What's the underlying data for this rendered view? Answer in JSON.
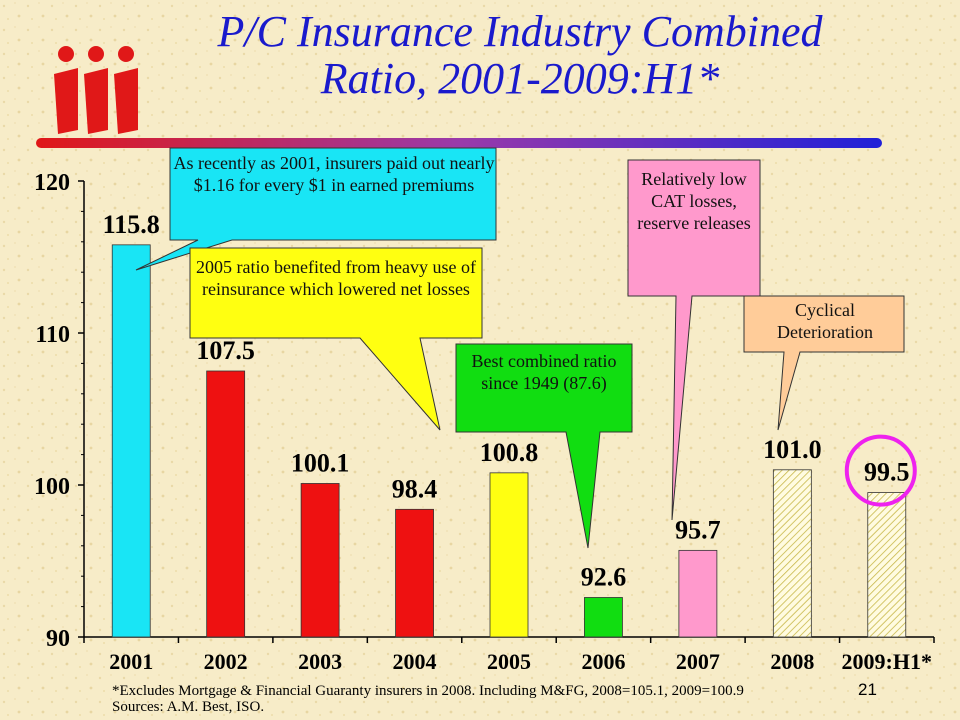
{
  "title_line1": "P/C Insurance Industry Combined",
  "title_line2": "Ratio, 2001-2009:H1*",
  "logo_label": "iii",
  "chart_data": {
    "type": "bar",
    "categories": [
      "2001",
      "2002",
      "2003",
      "2004",
      "2005",
      "2006",
      "2007",
      "2008",
      "2009:H1*"
    ],
    "values": [
      115.8,
      107.5,
      100.1,
      98.4,
      100.8,
      92.6,
      95.7,
      101.0,
      99.5
    ],
    "value_labels": [
      "115.8",
      "107.5",
      "100.1",
      "98.4",
      "100.8",
      "92.6",
      "95.7",
      "101.0",
      "99.5"
    ],
    "bar_colors": [
      "#19e5f5",
      "#ee1111",
      "#ee1111",
      "#ee1111",
      "#ffff11",
      "#11dd11",
      "#ff99cc",
      "#fffbe0",
      "#fffbe0"
    ],
    "hatched": [
      false,
      false,
      false,
      false,
      false,
      false,
      false,
      true,
      true
    ],
    "ylim": [
      90,
      120
    ],
    "yticks": [
      90,
      100,
      110,
      120
    ],
    "highlight_circle_on": "2009:H1*",
    "highlight_color": "#ee22ee"
  },
  "callouts": {
    "c2001": "As recently as 2001, insurers paid out nearly $1.16 for every $1 in earned premiums",
    "c2005": "2005 ratio benefited from heavy use of reinsurance which lowered net losses",
    "c2006": "Best combined ratio since 1949 (87.6)",
    "c2007": "Relatively low CAT losses, reserve releases",
    "c2008": "Cyclical Deterioration"
  },
  "footnote_line1": "*Excludes Mortgage & Financial Guaranty insurers in 2008. Including M&FG, 2008=105.1, 2009=100.9",
  "footnote_line2": "Sources: A.M. Best, ISO.",
  "page_number": "21"
}
